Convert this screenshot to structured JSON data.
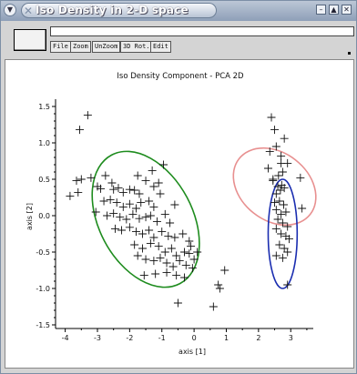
{
  "window": {
    "title": "Iso Density in 2-D space"
  },
  "toolbar": {
    "buttons": [
      "File",
      "Zoom",
      "UnZoom",
      "3D Rot.",
      "Edit"
    ]
  },
  "chart_data": {
    "type": "scatter",
    "title": "Iso Density Component - PCA 2D",
    "xlabel": "axis [1]",
    "ylabel": "axis [2]",
    "xlim": [
      -4.3,
      3.7
    ],
    "ylim": [
      -1.55,
      1.6
    ],
    "xticks": [
      -4,
      -3,
      -2,
      -1,
      0,
      1,
      2,
      3
    ],
    "yticks": [
      -1.5,
      -1.0,
      -0.5,
      0.0,
      0.5,
      1.0,
      1.5
    ],
    "ytick_labels": [
      "-1.5",
      "-1.0",
      "-0.5",
      "0.0",
      "0.5",
      "1.0",
      "1.5"
    ],
    "series": [
      {
        "marker": "plus",
        "points": [
          [
            -3.3,
            1.38
          ],
          [
            -3.55,
            1.18
          ],
          [
            -3.65,
            0.48
          ],
          [
            -3.5,
            0.5
          ],
          [
            -3.85,
            0.27
          ],
          [
            -3.6,
            0.32
          ],
          [
            -3.2,
            0.52
          ],
          [
            -3.0,
            0.4
          ],
          [
            -2.9,
            0.37
          ],
          [
            -2.75,
            0.55
          ],
          [
            -2.55,
            0.45
          ],
          [
            -2.5,
            0.36
          ],
          [
            -2.35,
            0.38
          ],
          [
            -2.2,
            0.32
          ],
          [
            -2.0,
            0.36
          ],
          [
            -1.85,
            0.35
          ],
          [
            -1.7,
            0.3
          ],
          [
            -1.5,
            0.48
          ],
          [
            -1.3,
            0.62
          ],
          [
            -1.25,
            0.4
          ],
          [
            -1.1,
            0.45
          ],
          [
            -2.8,
            0.2
          ],
          [
            -2.6,
            0.22
          ],
          [
            -2.4,
            0.18
          ],
          [
            -2.2,
            0.12
          ],
          [
            -2.0,
            0.16
          ],
          [
            -1.8,
            0.1
          ],
          [
            -1.65,
            0.18
          ],
          [
            -1.4,
            0.2
          ],
          [
            -1.25,
            0.12
          ],
          [
            -1.05,
            0.3
          ],
          [
            -2.7,
            0.0
          ],
          [
            -2.5,
            0.03
          ],
          [
            -2.3,
            -0.02
          ],
          [
            -2.1,
            -0.05
          ],
          [
            -1.9,
            0.02
          ],
          [
            -1.7,
            -0.04
          ],
          [
            -1.5,
            -0.02
          ],
          [
            -1.35,
            0.0
          ],
          [
            -1.15,
            -0.08
          ],
          [
            -0.9,
            0.02
          ],
          [
            -0.75,
            -0.1
          ],
          [
            -2.45,
            -0.18
          ],
          [
            -2.25,
            -0.2
          ],
          [
            -2.0,
            -0.16
          ],
          [
            -1.8,
            -0.22
          ],
          [
            -1.6,
            -0.25
          ],
          [
            -1.4,
            -0.2
          ],
          [
            -1.25,
            -0.3
          ],
          [
            -1.0,
            -0.22
          ],
          [
            -0.8,
            -0.28
          ],
          [
            -0.6,
            -0.3
          ],
          [
            -0.35,
            -0.25
          ],
          [
            -0.15,
            -0.35
          ],
          [
            -1.85,
            -0.4
          ],
          [
            -1.6,
            -0.45
          ],
          [
            -1.35,
            -0.38
          ],
          [
            -1.1,
            -0.42
          ],
          [
            -0.9,
            -0.5
          ],
          [
            -0.7,
            -0.45
          ],
          [
            -0.55,
            -0.55
          ],
          [
            -0.3,
            -0.5
          ],
          [
            -0.1,
            -0.42
          ],
          [
            0.1,
            -0.5
          ],
          [
            -1.75,
            -0.55
          ],
          [
            -1.5,
            -0.6
          ],
          [
            -1.25,
            -0.62
          ],
          [
            -1.05,
            -0.58
          ],
          [
            -0.85,
            -0.65
          ],
          [
            -0.65,
            -0.7
          ],
          [
            -0.45,
            -0.62
          ],
          [
            -0.25,
            -0.68
          ],
          [
            -0.05,
            -0.72
          ],
          [
            0.0,
            -0.6
          ],
          [
            -1.55,
            -0.82
          ],
          [
            -1.2,
            -0.8
          ],
          [
            -0.85,
            -0.78
          ],
          [
            -0.55,
            -0.82
          ],
          [
            -0.3,
            -0.85
          ],
          [
            -0.5,
            -1.2
          ],
          [
            -0.15,
            -0.52
          ],
          [
            0.95,
            -0.75
          ],
          [
            0.75,
            -0.95
          ],
          [
            0.8,
            -1.0
          ],
          [
            0.6,
            -1.25
          ],
          [
            -0.95,
            0.7
          ],
          [
            -0.6,
            0.15
          ],
          [
            -3.05,
            0.05
          ],
          [
            -1.75,
            0.55
          ],
          [
            2.4,
            1.35
          ],
          [
            2.35,
            0.88
          ],
          [
            2.55,
            0.95
          ],
          [
            2.7,
            0.72
          ],
          [
            2.62,
            0.55
          ],
          [
            2.75,
            0.6
          ],
          [
            2.45,
            0.48
          ],
          [
            2.6,
            0.4
          ],
          [
            2.72,
            0.42
          ],
          [
            2.55,
            0.3
          ],
          [
            2.68,
            0.35
          ],
          [
            2.8,
            0.38
          ],
          [
            2.5,
            0.18
          ],
          [
            2.65,
            0.2
          ],
          [
            2.78,
            0.15
          ],
          [
            2.55,
            0.08
          ],
          [
            2.7,
            0.02
          ],
          [
            2.85,
            0.05
          ],
          [
            2.45,
            0.5
          ],
          [
            2.3,
            0.65
          ],
          [
            2.9,
            0.72
          ],
          [
            2.6,
            -0.05
          ],
          [
            2.75,
            -0.1
          ],
          [
            2.9,
            -0.15
          ],
          [
            2.55,
            -0.18
          ],
          [
            2.7,
            -0.25
          ],
          [
            2.85,
            -0.28
          ],
          [
            2.95,
            -0.32
          ],
          [
            2.65,
            -0.4
          ],
          [
            2.8,
            -0.45
          ],
          [
            2.55,
            -0.55
          ],
          [
            2.75,
            -0.58
          ],
          [
            2.9,
            -0.5
          ],
          [
            2.9,
            -0.95
          ],
          [
            3.35,
            0.1
          ],
          [
            3.3,
            0.52
          ],
          [
            2.7,
            0.82
          ],
          [
            2.8,
            1.06
          ],
          [
            2.5,
            1.18
          ]
        ]
      }
    ],
    "ellipses": [
      {
        "color": "#1e8c1e",
        "cx": -1.5,
        "cy": -0.05,
        "rx": 1.45,
        "ry": 1.0,
        "rotation": -28
      },
      {
        "color": "#e89090",
        "cx": 2.5,
        "cy": 0.4,
        "rx": 1.05,
        "ry": 0.62,
        "rotation": -52
      },
      {
        "color": "#1a2db0",
        "cx": 2.75,
        "cy": -0.25,
        "rx": 0.45,
        "ry": 0.75,
        "rotation": 0
      }
    ]
  }
}
